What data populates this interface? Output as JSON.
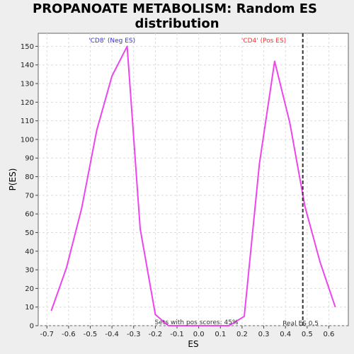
{
  "chart_data": {
    "type": "line",
    "title_line1": "PROPANOATE METABOLISM: Random ES",
    "title_line2": "distribution",
    "xlabel": "ES",
    "ylabel": "P(ES)",
    "xlim": [
      -0.74,
      0.69
    ],
    "ylim": [
      0,
      157
    ],
    "xticks": [
      -0.7,
      -0.6,
      -0.5,
      -0.4,
      -0.3,
      -0.2,
      -0.1,
      0.0,
      0.1,
      0.2,
      0.3,
      0.4,
      0.5,
      0.6
    ],
    "xtick_labels": [
      "-0.7",
      "-0.6",
      "-0.5",
      "-0.4",
      "-0.3",
      "-0.2",
      "-0.1",
      "0.0",
      "0.1",
      "0.2",
      "0.3",
      "0.4",
      "0.5",
      "0.6"
    ],
    "yticks": [
      0,
      10,
      20,
      30,
      40,
      50,
      60,
      70,
      80,
      90,
      100,
      110,
      120,
      130,
      140,
      150
    ],
    "ytick_labels": [
      "0",
      "10",
      "20",
      "30",
      "40",
      "50",
      "60",
      "70",
      "80",
      "90",
      "100",
      "110",
      "120",
      "130",
      "140",
      "150"
    ],
    "grid": true,
    "series": [
      {
        "color": "#ee44ee",
        "x": [
          -0.68,
          -0.61,
          -0.54,
          -0.47,
          -0.4,
          -0.33,
          -0.27,
          -0.2,
          -0.14,
          -0.07,
          0.0,
          0.07,
          0.14,
          0.21,
          0.28,
          0.35,
          0.42,
          0.49,
          0.56,
          0.63
        ],
        "y": [
          8,
          31,
          63,
          105,
          134,
          150,
          52,
          6,
          0,
          0,
          0,
          0,
          0,
          5,
          87,
          142,
          109,
          64,
          34,
          10
        ]
      }
    ],
    "real_es_value": 0.48,
    "real_es_color": "#333333",
    "annotations": {
      "neg_label": "'CD8' (Neg ES)",
      "neg_color": "#3333cc",
      "pos_label": "'CD4' (Pos ES)",
      "pos_color": "#ee3333",
      "pos_scores_text": "Sets with pos scores: 45%",
      "real_es_text": "Real ES 0.5"
    },
    "colors": {
      "background": "#eeeeee",
      "plot_background": "#ffffff",
      "grid": "#dddddd"
    }
  }
}
